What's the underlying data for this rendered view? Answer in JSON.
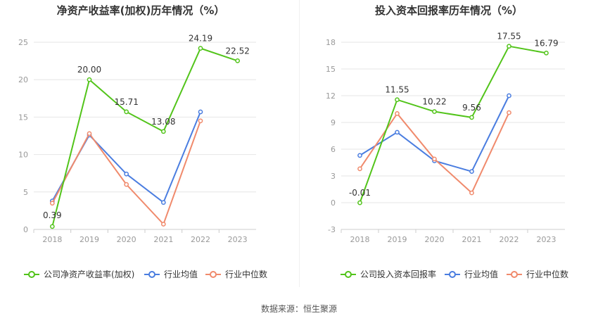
{
  "source_note": "数据来源：恒生聚源",
  "colors": {
    "company": "#52c41a",
    "avg": "#4a7de0",
    "median": "#f08a6c",
    "grid": "#e6e6e6",
    "axis": "#999999",
    "label": "#333333"
  },
  "chart_data": [
    {
      "type": "line",
      "title": "净资产收益率(加权)历年情况（%）",
      "categories": [
        "2018",
        "2019",
        "2020",
        "2021",
        "2022",
        "2023"
      ],
      "ylim": [
        0,
        25
      ],
      "yticks": [
        0,
        5,
        10,
        15,
        20,
        25
      ],
      "grid": true,
      "legend_position": "bottom",
      "series": [
        {
          "name": "公司净资产收益率(加权)",
          "color_key": "company",
          "values": [
            0.39,
            20.0,
            15.71,
            13.08,
            24.19,
            22.52
          ],
          "labels": [
            "0.39",
            "20.00",
            "15.71",
            "13.08",
            "24.19",
            "22.52"
          ]
        },
        {
          "name": "行业均值",
          "color_key": "avg",
          "values": [
            3.8,
            12.6,
            7.4,
            3.6,
            15.7,
            null
          ]
        },
        {
          "name": "行业中位数",
          "color_key": "median",
          "values": [
            3.5,
            12.8,
            6.0,
            0.7,
            14.5,
            null
          ]
        }
      ]
    },
    {
      "type": "line",
      "title": "投入资本回报率历年情况（%）",
      "categories": [
        "2018",
        "2019",
        "2020",
        "2021",
        "2022",
        "2023"
      ],
      "ylim": [
        -3,
        18
      ],
      "yticks": [
        -3,
        0,
        3,
        6,
        9,
        12,
        15,
        18
      ],
      "grid": true,
      "legend_position": "bottom",
      "series": [
        {
          "name": "公司投入资本回报率",
          "color_key": "company",
          "values": [
            -0.01,
            11.55,
            10.22,
            9.56,
            17.55,
            16.79
          ],
          "labels": [
            "-0.01",
            "11.55",
            "10.22",
            "9.56",
            "17.55",
            "16.79"
          ]
        },
        {
          "name": "行业均值",
          "color_key": "avg",
          "values": [
            5.3,
            7.9,
            4.7,
            3.5,
            12.0,
            null
          ]
        },
        {
          "name": "行业中位数",
          "color_key": "median",
          "values": [
            3.8,
            10.0,
            4.9,
            1.1,
            10.1,
            null
          ]
        }
      ]
    }
  ]
}
